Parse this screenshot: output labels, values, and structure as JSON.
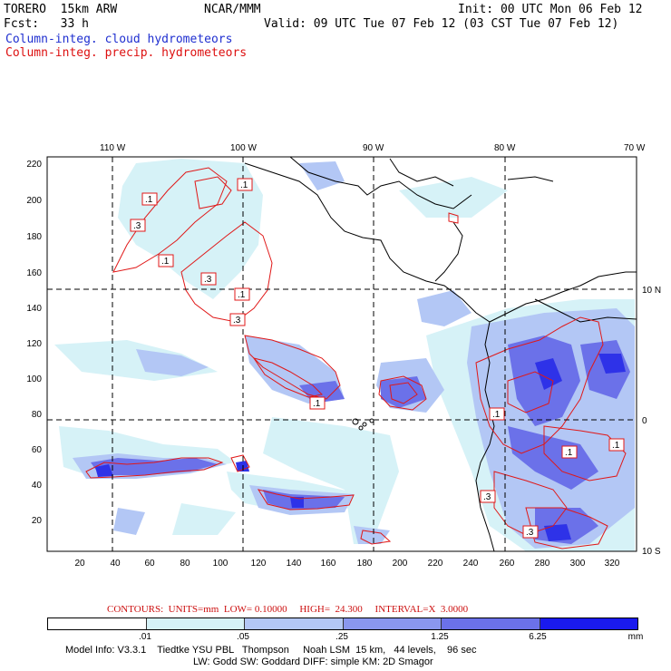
{
  "header": {
    "model": "TORERO  15km ARW",
    "org": "NCAR/MMM",
    "init": "Init: 00 UTC Mon 06 Feb 12",
    "fcst": "Fcst:   33 h",
    "valid": "Valid: 09 UTC Tue 07 Feb 12 (03 CST Tue 07 Feb 12)",
    "field_blue": "Column-integ. cloud hydrometeors",
    "field_red": "Column-integ. precip. hydrometeors"
  },
  "map": {
    "top_lon_labels": [
      "110 W",
      "100 W",
      "90 W",
      "80 W",
      "70 W"
    ],
    "right_lat_labels": [
      "10 N",
      "0",
      "10 S"
    ],
    "left_ticks": [
      "220",
      "200",
      "180",
      "160",
      "140",
      "120",
      "100",
      "80",
      "60",
      "40",
      "20"
    ],
    "bottom_ticks": [
      "20",
      "40",
      "60",
      "80",
      "100",
      "120",
      "140",
      "160",
      "180",
      "200",
      "220",
      "240",
      "260",
      "280",
      "300",
      "320"
    ],
    "contour_labels": [
      ".1",
      ".1",
      ".3",
      ".1",
      ".3",
      ".1",
      ".3",
      ".1",
      ".1",
      ".1",
      ".3",
      ".3",
      ".1"
    ]
  },
  "legend": {
    "contours_line": "CONTOURS:  UNITS=mm  LOW= 0.10000     HIGH=  24.300     INTERVAL=X  3.0000",
    "scale_labels": [
      ".01",
      ".05",
      ".25",
      "1.25",
      "6.25"
    ],
    "units": "mm",
    "colors": [
      "#ffffff",
      "#d6f2f7",
      "#b3c7f5",
      "#8a97ef",
      "#6b71e9",
      "#1a1aee"
    ]
  },
  "footer": {
    "line1": "Model Info: V3.3.1    Tiedtke YSU PBL   Thompson     Noah LSM  15 km,   44 levels,    96 sec",
    "line2": "LW: Godd SW: Goddard DIFF: simple KM: 2D Smagor"
  }
}
